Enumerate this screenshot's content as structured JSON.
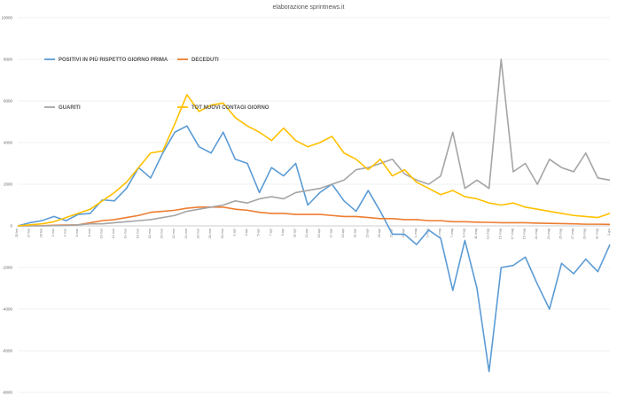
{
  "chart_data": {
    "type": "line",
    "title": "elaborazione sprintnews.it",
    "ylim": [
      -8000,
      10000
    ],
    "yticks": [
      "-8000",
      "-6000",
      "-4000",
      "-2000",
      "0",
      "2000",
      "4000",
      "6000",
      "8000",
      "10000"
    ],
    "ytick_values": [
      -8000,
      -6000,
      -4000,
      -2000,
      0,
      2000,
      4000,
      6000,
      8000,
      10000
    ],
    "grid": true,
    "categories": [
      "25-feb",
      "27-feb",
      "29-feb",
      "2-mar",
      "4-mar",
      "6-mar",
      "8-mar",
      "10-mar",
      "12-mar",
      "14-mar",
      "16-mar",
      "18-mar",
      "20-mar",
      "22-mar",
      "24-mar",
      "26-mar",
      "28-mar",
      "30-mar",
      "1-apr",
      "3-apr",
      "5-apr",
      "7-apr",
      "9-apr",
      "11-apr",
      "13-apr",
      "15-apr",
      "17-apr",
      "19-apr",
      "21-apr",
      "23-apr",
      "25-apr",
      "27-apr",
      "29-apr",
      "1-mag",
      "3-mag",
      "5-mag",
      "7-mag",
      "9-mag",
      "11-mag",
      "13-mag",
      "15-mag",
      "17-mag",
      "19-mag",
      "21-mag",
      "23-mag",
      "25-mag",
      "27-mag",
      "29-mag",
      "31-mag",
      "2-giu"
    ],
    "series": [
      {
        "name": "POSITIVI IN PIÙ RISPETTO GIORNO PRIMA",
        "color": "#5b9bd5",
        "values": [
          0,
          150,
          250,
          450,
          250,
          550,
          600,
          1250,
          1200,
          1800,
          2800,
          2300,
          3500,
          4500,
          4800,
          3800,
          3500,
          4500,
          3200,
          3000,
          1600,
          2800,
          2400,
          3000,
          1000,
          1600,
          2000,
          1200,
          700,
          1700,
          700,
          -400,
          -400,
          -900,
          -200,
          -600,
          -3100,
          -700,
          -3000,
          -7000,
          -2000,
          -1900,
          -1500,
          -2800,
          -4000,
          -1800,
          -2300,
          -1600,
          -2200,
          -900
        ]
      },
      {
        "name": "DECEDUTI",
        "color": "#ed7d31",
        "values": [
          0,
          5,
          10,
          30,
          40,
          50,
          150,
          250,
          300,
          400,
          500,
          650,
          700,
          750,
          850,
          900,
          900,
          900,
          800,
          750,
          650,
          600,
          600,
          550,
          550,
          550,
          500,
          450,
          450,
          400,
          350,
          350,
          300,
          300,
          250,
          250,
          200,
          200,
          180,
          170,
          150,
          150,
          150,
          130,
          120,
          110,
          100,
          80,
          80,
          70
        ]
      },
      {
        "name": "GUARITI",
        "color": "#a5a5a5",
        "values": [
          0,
          0,
          0,
          10,
          20,
          50,
          100,
          100,
          150,
          200,
          250,
          300,
          400,
          500,
          700,
          800,
          900,
          1000,
          1200,
          1100,
          1300,
          1400,
          1300,
          1600,
          1700,
          1800,
          2000,
          2200,
          2700,
          2800,
          3000,
          3200,
          2500,
          2200,
          2000,
          2400,
          4500,
          1800,
          2200,
          1800,
          8000,
          2600,
          3000,
          2000,
          3200,
          2800,
          2600,
          3500,
          2300,
          2200
        ]
      },
      {
        "name": "TOT NUOVI CONTAGI GIORNO",
        "color": "#ffc000",
        "values": [
          0,
          50,
          100,
          200,
          400,
          600,
          800,
          1200,
          1600,
          2100,
          2800,
          3500,
          3600,
          4900,
          6300,
          5500,
          5800,
          5900,
          5200,
          4800,
          4500,
          4100,
          4700,
          4100,
          3800,
          4000,
          4300,
          3500,
          3200,
          2700,
          3200,
          2400,
          2700,
          2100,
          1800,
          1500,
          1700,
          1400,
          1300,
          1100,
          1000,
          1100,
          900,
          800,
          700,
          600,
          500,
          450,
          400,
          600
        ]
      }
    ]
  }
}
